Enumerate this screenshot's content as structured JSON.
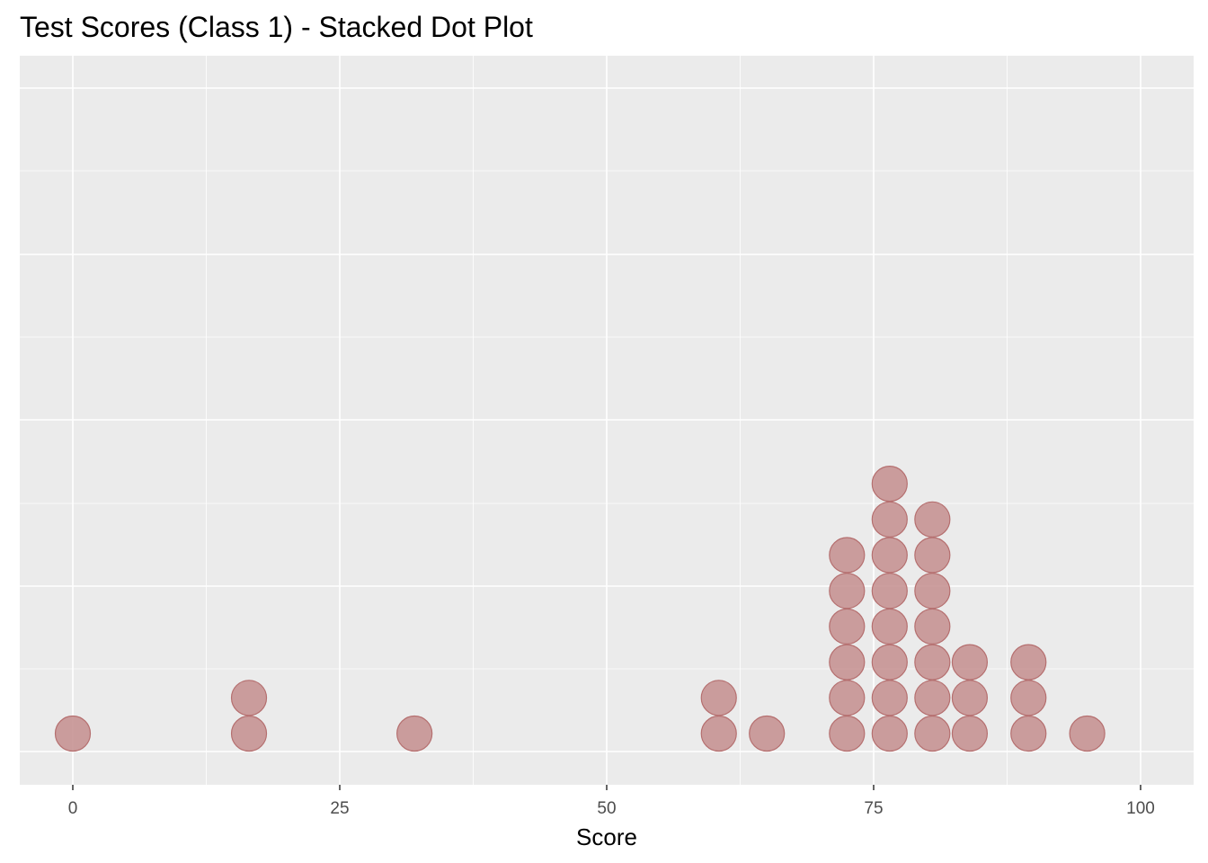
{
  "chart_data": {
    "type": "dot",
    "title": "Test Scores (Class 1) - Stacked Dot Plot",
    "xlabel": "Score",
    "ylabel": "",
    "xlim": [
      -2.5,
      104.5
    ],
    "x_ticks": [
      0,
      25,
      50,
      75,
      100
    ],
    "x_tick_labels": [
      "0",
      "25",
      "50",
      "75",
      "100"
    ],
    "grid": true,
    "y_axis_labels_shown": false,
    "dot_color": "#C48E8E",
    "dot_stroke": "#B56F6F",
    "panel_background": "#EBEBEB",
    "stacks": [
      {
        "x": 0,
        "count": 1
      },
      {
        "x": 16.5,
        "count": 2
      },
      {
        "x": 32,
        "count": 1
      },
      {
        "x": 60.5,
        "count": 2
      },
      {
        "x": 65,
        "count": 1
      },
      {
        "x": 72.5,
        "count": 6
      },
      {
        "x": 76.5,
        "count": 8
      },
      {
        "x": 80.5,
        "count": 7
      },
      {
        "x": 84,
        "count": 3
      },
      {
        "x": 89.5,
        "count": 3
      },
      {
        "x": 95,
        "count": 1
      }
    ]
  }
}
